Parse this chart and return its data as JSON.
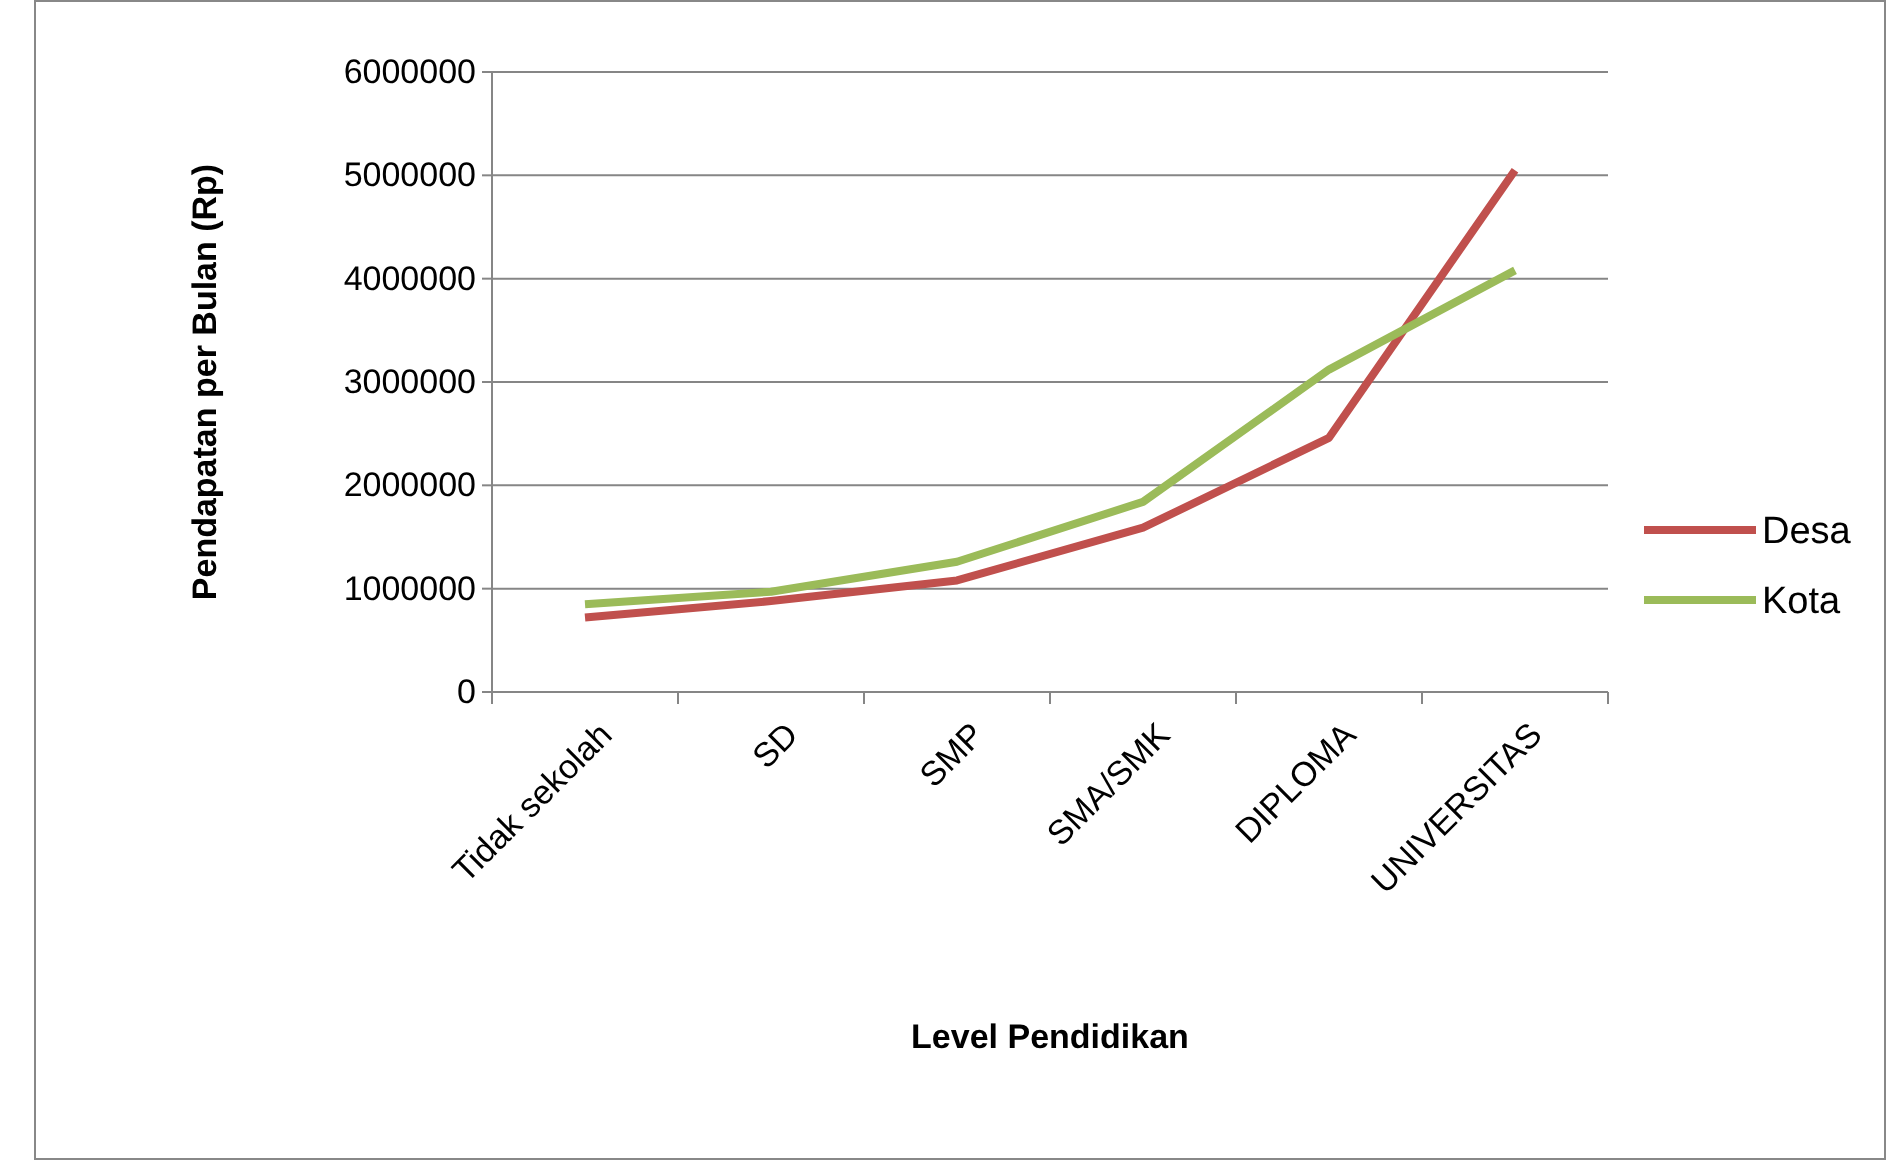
{
  "chart_data": {
    "type": "line",
    "xlabel": "Level Pendidikan",
    "ylabel": "Pendapatan per Bulan (Rp)",
    "categories": [
      "Tidak sekolah",
      "SD",
      "SMP",
      "SMA/SMK",
      "DIPLOMA",
      "UNIVERSITAS"
    ],
    "series": [
      {
        "name": "Desa",
        "color": "#c0504d",
        "values": [
          720000,
          880000,
          1080000,
          1590000,
          2460000,
          5050000
        ]
      },
      {
        "name": "Kota",
        "color": "#9bbb59",
        "values": [
          850000,
          970000,
          1260000,
          1840000,
          3120000,
          4080000
        ]
      }
    ],
    "ylim": [
      0,
      6000000
    ],
    "yticks": [
      0,
      1000000,
      2000000,
      3000000,
      4000000,
      5000000,
      6000000
    ],
    "grid": "y",
    "legend": "right",
    "marker": "none",
    "line_style": "solid"
  }
}
